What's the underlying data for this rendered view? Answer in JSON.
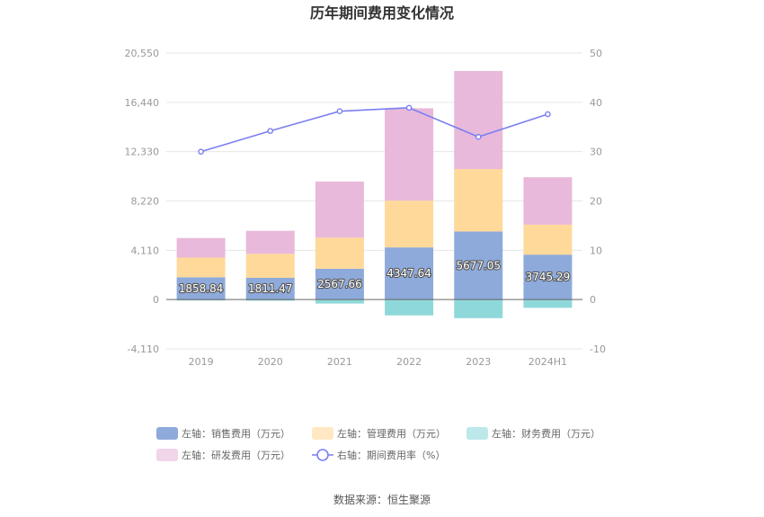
{
  "chart_data": {
    "type": "bar",
    "title": "历年期间费用变化情况",
    "categories": [
      "2019",
      "2020",
      "2021",
      "2022",
      "2023",
      "2024H1"
    ],
    "left_axis": {
      "ticks": [
        "-4,110",
        "0",
        "4,110",
        "8,220",
        "12,330",
        "16,440",
        "20,550"
      ],
      "ylim": [
        -4110,
        20550
      ]
    },
    "right_axis": {
      "ticks": [
        "-10",
        "0",
        "10",
        "20",
        "30",
        "40",
        "50"
      ],
      "ylim": [
        -10,
        50
      ]
    },
    "series": [
      {
        "name": "左轴：销售费用（万元）",
        "type": "bar",
        "axis": "left",
        "color": "#8eaadb",
        "values": [
          1858.84,
          1811.47,
          2567.66,
          4347.64,
          5677.05,
          3745.29
        ]
      },
      {
        "name": "左轴：管理费用（万元）",
        "type": "bar",
        "axis": "left",
        "color": "#ffd99a",
        "values": [
          1640,
          2000,
          2590,
          3900,
          5200,
          2500
        ]
      },
      {
        "name": "左轴：财务费用（万元）",
        "type": "bar",
        "axis": "left",
        "color": "#8fd8da",
        "values": [
          -80,
          -100,
          -330,
          -1320,
          -1550,
          -690
        ]
      },
      {
        "name": "左轴：研发费用（万元）",
        "type": "bar",
        "axis": "left",
        "color": "#e8b9da",
        "values": [
          1630,
          1920,
          4680,
          7700,
          8180,
          3950
        ]
      },
      {
        "name": "右轴：期间费用率（%）",
        "type": "line",
        "axis": "right",
        "color": "#7b7ff0",
        "values": [
          30.0,
          34.2,
          38.2,
          38.9,
          33.0,
          37.6
        ]
      }
    ],
    "data_labels": [
      "1858.84",
      "1811.47",
      "2567.66",
      "4347.64",
      "5677.05",
      "3745.29"
    ],
    "grid": true,
    "legend_position": "bottom"
  },
  "source": "数据来源：恒生聚源"
}
